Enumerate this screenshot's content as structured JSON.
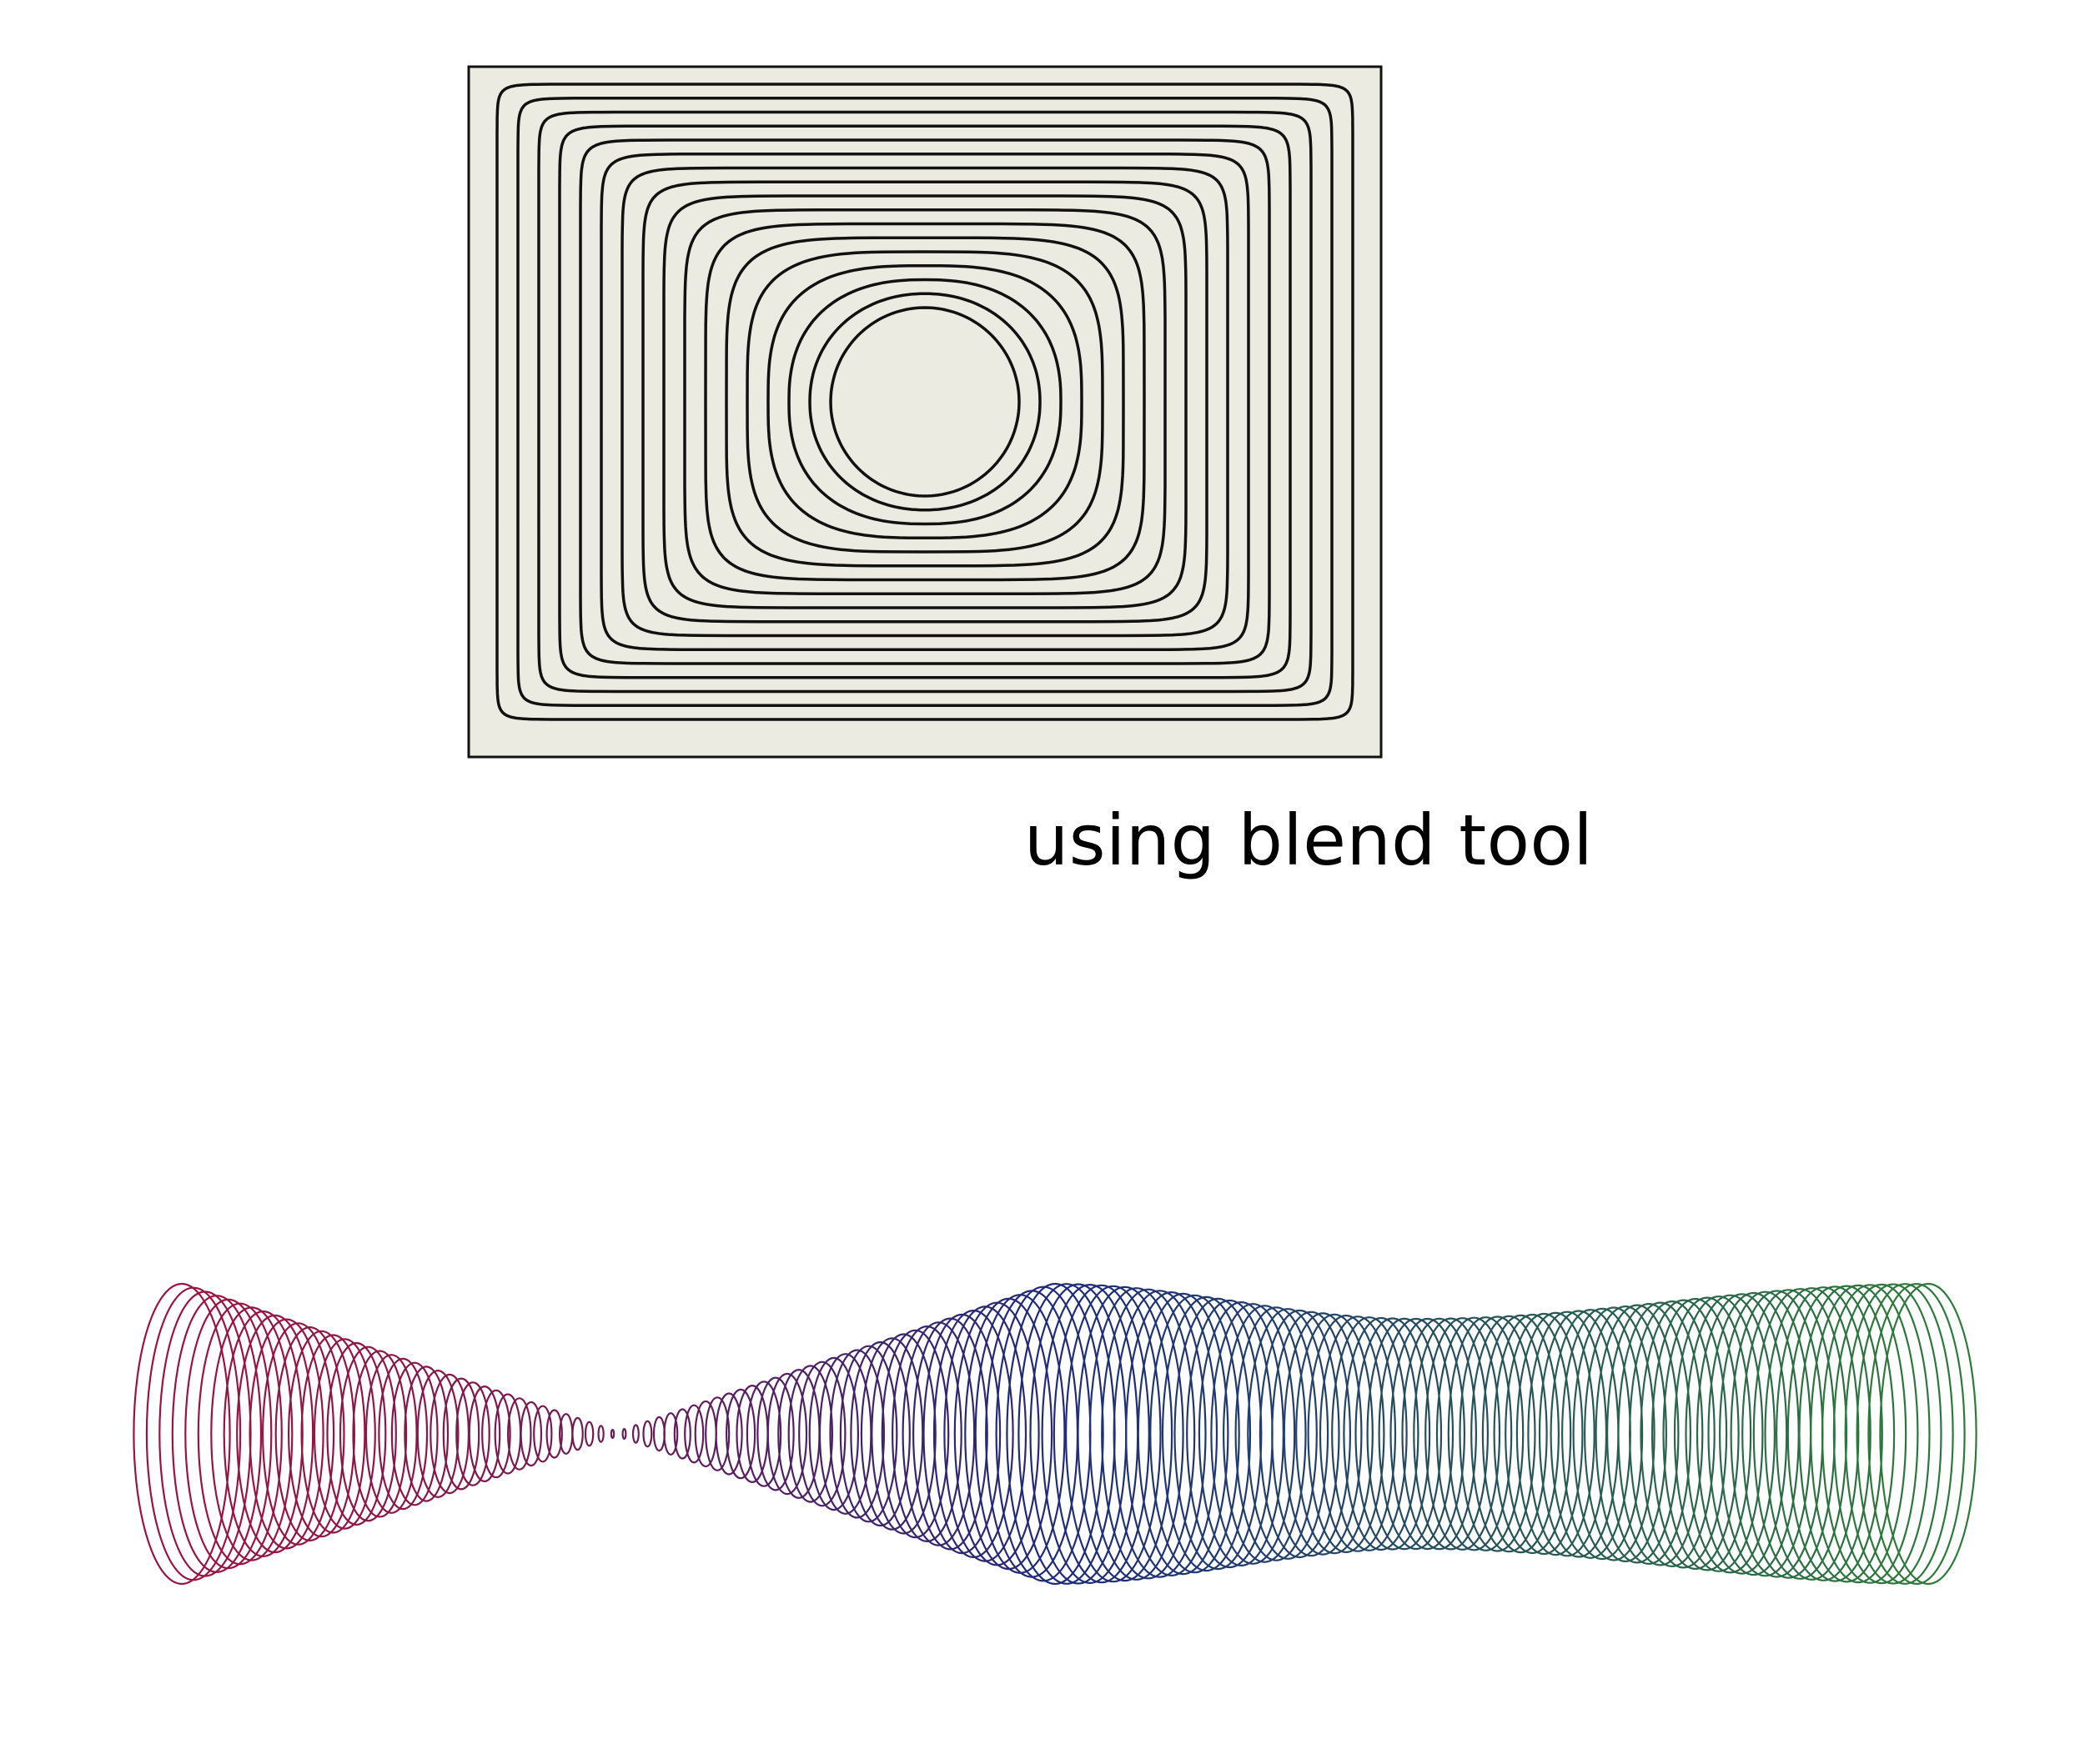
{
  "caption": "using blend tool",
  "colors": {
    "page_background": "#ffffff",
    "panel_fill": "#ecebe1",
    "line_stroke": "#111111",
    "blend_start": "#9b1440",
    "blend_middle": "#1e2a7a",
    "blend_end": "#2f7a3a"
  },
  "illustrations": [
    {
      "name": "nested-rectangle-to-circle-blend",
      "description_icon": "concentric-contours-icon",
      "outer_shape": "rectangle",
      "inner_shape": "circle",
      "step_count": 17
    },
    {
      "name": "colored-ellipse-blend",
      "description_icon": "ellipse-ribbon-icon",
      "step_count": 150
    }
  ]
}
